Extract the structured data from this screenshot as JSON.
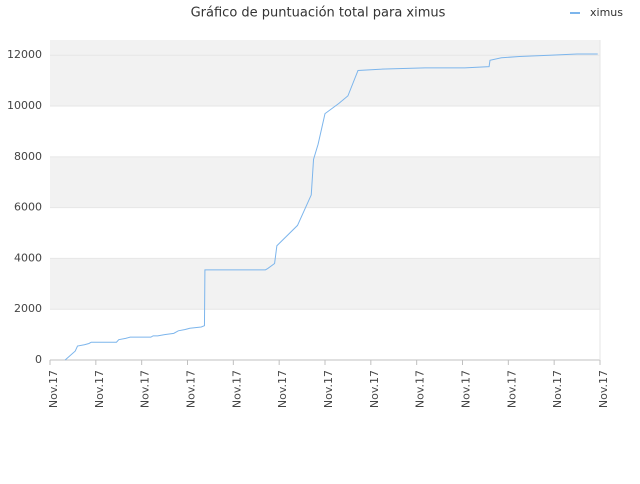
{
  "chart_data": {
    "type": "line",
    "title": "Gráfico de puntuación total para ximus",
    "x": [
      0.33,
      0.55,
      0.6,
      0.75,
      0.85,
      0.9,
      1.45,
      1.5,
      1.65,
      1.75,
      2.2,
      2.25,
      2.35,
      2.5,
      2.7,
      2.8,
      2.95,
      3.05,
      3.3,
      3.37,
      3.38,
      4.7,
      4.75,
      4.9,
      4.95,
      5.4,
      5.7,
      5.75,
      5.85,
      6.0,
      6.3,
      6.5,
      6.72,
      7.2,
      8.18,
      9.05,
      9.58,
      9.6,
      9.85,
      10.24,
      10.9,
      11.5,
      11.95
    ],
    "series": [
      {
        "name": "ximus",
        "color": "#7cb5ec",
        "values": [
          0,
          350,
          550,
          600,
          650,
          700,
          700,
          800,
          850,
          900,
          900,
          950,
          950,
          1000,
          1050,
          1150,
          1200,
          1250,
          1300,
          1350,
          3550,
          3550,
          3600,
          3800,
          4500,
          5300,
          6500,
          7900,
          8500,
          9700,
          10100,
          10400,
          11400,
          11450,
          11500,
          11500,
          11550,
          11800,
          11900,
          11950,
          12000,
          12050,
          12050
        ]
      }
    ],
    "xlim": [
      0,
      12
    ],
    "xticks": [
      {
        "value": 0,
        "label": "Nov.17"
      },
      {
        "value": 1,
        "label": "Nov.17"
      },
      {
        "value": 2,
        "label": "Nov.17"
      },
      {
        "value": 3,
        "label": "Nov.17"
      },
      {
        "value": 4,
        "label": "Nov.17"
      },
      {
        "value": 5,
        "label": "Nov.17"
      },
      {
        "value": 6,
        "label": "Nov.17"
      },
      {
        "value": 7,
        "label": "Nov.17"
      },
      {
        "value": 8,
        "label": "Nov.17"
      },
      {
        "value": 9,
        "label": "Nov.17"
      },
      {
        "value": 10,
        "label": "Nov.17"
      },
      {
        "value": 11,
        "label": "Nov.17"
      },
      {
        "value": 12,
        "label": "Nov.17"
      }
    ],
    "ylim": [
      0,
      12600
    ],
    "yticks": [
      0,
      2000,
      4000,
      6000,
      8000,
      10000,
      12000
    ],
    "grid": true,
    "legend": "top-right"
  }
}
